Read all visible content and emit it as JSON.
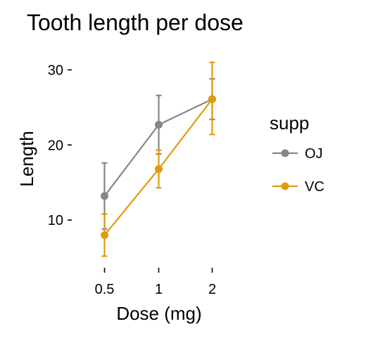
{
  "chart_data": {
    "type": "line",
    "title": "Tooth length per dose",
    "xlabel": "Dose (mg)",
    "ylabel": "Length",
    "categories": [
      "0.5",
      "1",
      "2"
    ],
    "ylim": [
      4.5,
      33.5
    ],
    "yticks": [
      10,
      20,
      30
    ],
    "grid": false,
    "legend": {
      "title": "supp",
      "placement": "right"
    },
    "series": [
      {
        "name": "OJ",
        "color": "#868686",
        "values": [
          13.2,
          22.7,
          26.1
        ],
        "err_low": [
          8.8,
          18.8,
          23.4
        ],
        "err_high": [
          17.6,
          26.6,
          28.8
        ]
      },
      {
        "name": "VC",
        "color": "#E09B0C",
        "values": [
          8.0,
          16.8,
          26.1
        ],
        "err_low": [
          5.2,
          14.3,
          21.4
        ],
        "err_high": [
          10.8,
          19.3,
          31.0
        ]
      }
    ]
  }
}
